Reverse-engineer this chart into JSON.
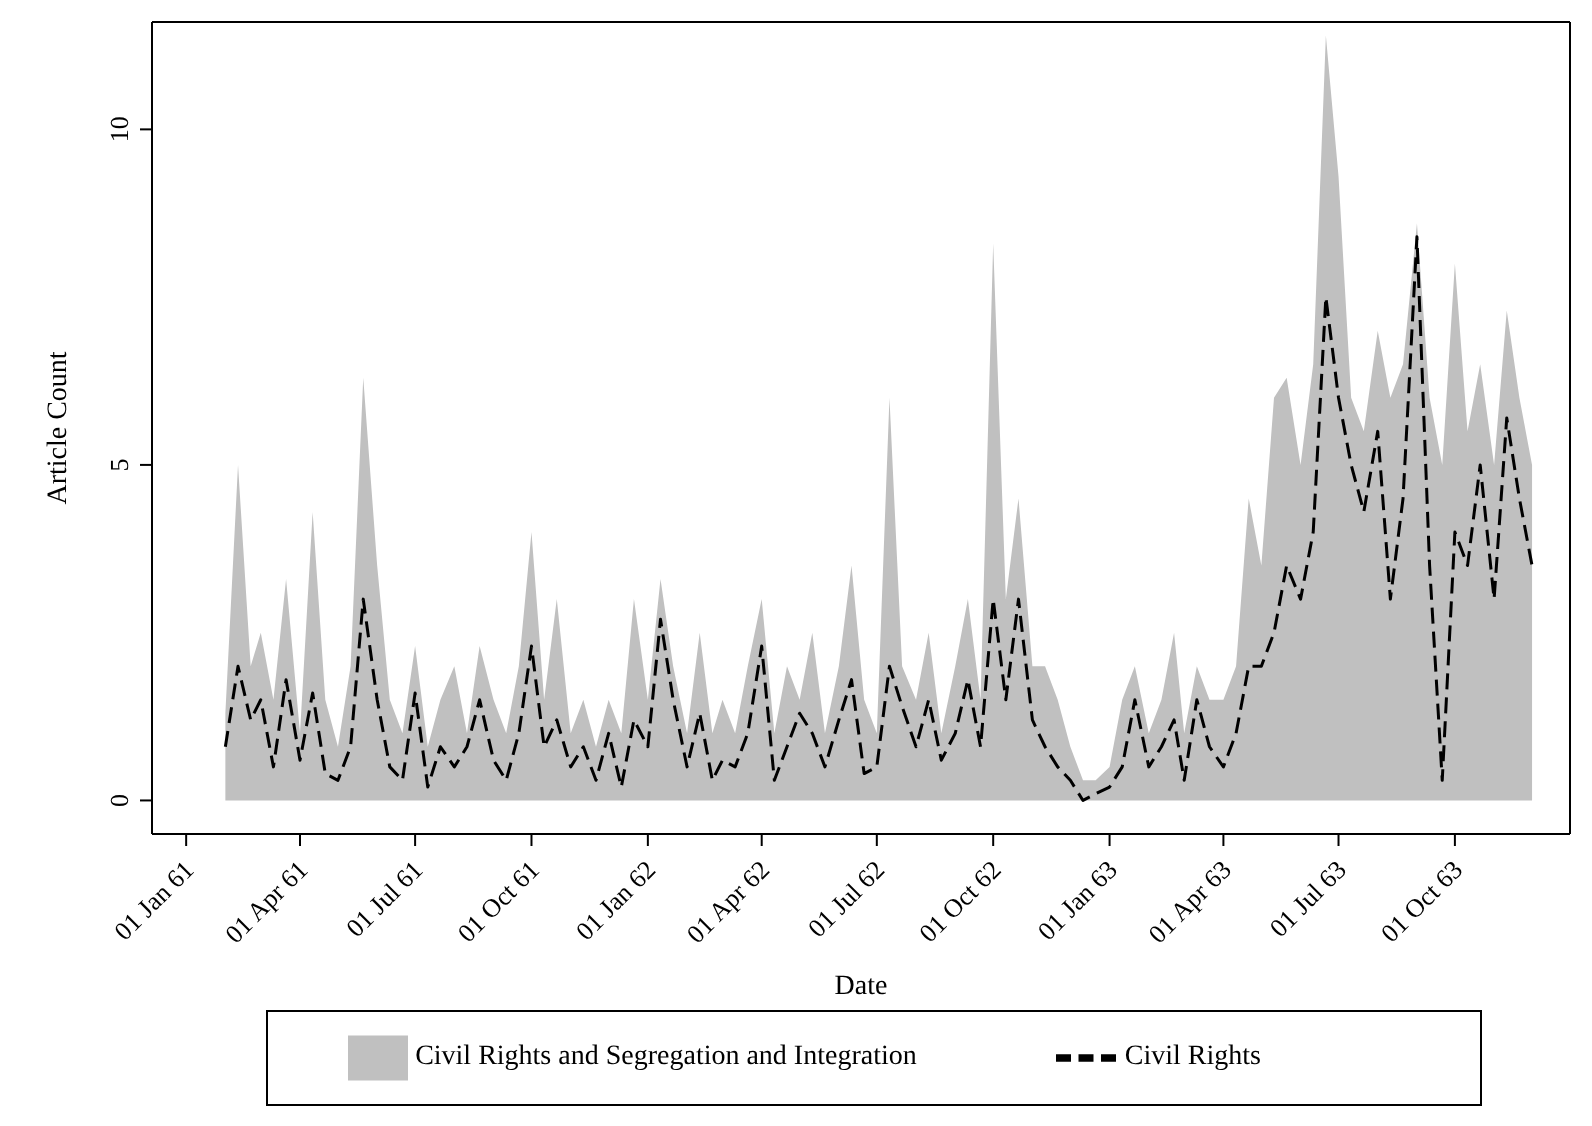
{
  "chart_data": {
    "type": "area",
    "xlabel": "Date",
    "ylabel": "Article Count",
    "x": [
      "1961-02-01",
      "1961-02-11",
      "1961-02-21",
      "1961-03-01",
      "1961-03-11",
      "1961-03-21",
      "1961-04-01",
      "1961-04-11",
      "1961-04-21",
      "1961-05-01",
      "1961-05-11",
      "1961-05-21",
      "1961-06-01",
      "1961-06-11",
      "1961-06-21",
      "1961-07-01",
      "1961-07-11",
      "1961-07-21",
      "1961-08-01",
      "1961-08-11",
      "1961-08-21",
      "1961-09-01",
      "1961-09-11",
      "1961-09-21",
      "1961-10-01",
      "1961-10-11",
      "1961-10-21",
      "1961-11-01",
      "1961-11-11",
      "1961-11-21",
      "1961-12-01",
      "1961-12-11",
      "1961-12-21",
      "1962-01-01",
      "1962-01-11",
      "1962-01-21",
      "1962-02-01",
      "1962-02-11",
      "1962-02-21",
      "1962-03-01",
      "1962-03-11",
      "1962-03-21",
      "1962-04-01",
      "1962-04-11",
      "1962-04-21",
      "1962-05-01",
      "1962-05-11",
      "1962-05-21",
      "1962-06-01",
      "1962-06-11",
      "1962-06-21",
      "1962-07-01",
      "1962-07-11",
      "1962-07-21",
      "1962-08-01",
      "1962-08-11",
      "1962-08-21",
      "1962-09-01",
      "1962-09-11",
      "1962-09-21",
      "1962-10-01",
      "1962-10-11",
      "1962-10-21",
      "1962-11-01",
      "1962-11-11",
      "1962-11-21",
      "1962-12-01",
      "1962-12-11",
      "1962-12-21",
      "1963-01-01",
      "1963-01-11",
      "1963-01-21",
      "1963-02-01",
      "1963-02-11",
      "1963-02-21",
      "1963-03-01",
      "1963-03-11",
      "1963-03-21",
      "1963-04-01",
      "1963-04-11",
      "1963-04-21",
      "1963-05-01",
      "1963-05-11",
      "1963-05-21",
      "1963-06-01",
      "1963-06-11",
      "1963-06-21",
      "1963-07-01",
      "1963-07-11",
      "1963-07-21",
      "1963-08-01",
      "1963-08-11",
      "1963-08-21",
      "1963-09-01",
      "1963-09-11",
      "1963-09-21",
      "1963-10-01",
      "1963-10-11",
      "1963-10-21",
      "1963-11-01",
      "1963-11-11",
      "1963-11-21",
      "1963-12-01"
    ],
    "series": [
      {
        "name": "Civil Rights and Segregation and Integration",
        "color": "#c0c0c0",
        "values": [
          1.3,
          5.0,
          2.0,
          2.5,
          1.5,
          3.3,
          1.0,
          4.3,
          1.5,
          0.8,
          2.0,
          6.3,
          3.5,
          1.5,
          1.0,
          2.3,
          0.8,
          1.5,
          2.0,
          1.0,
          2.3,
          1.5,
          1.0,
          2.0,
          4.0,
          1.5,
          3.0,
          1.0,
          1.5,
          0.8,
          1.5,
          1.0,
          3.0,
          1.5,
          3.3,
          2.0,
          1.0,
          2.5,
          1.0,
          1.5,
          1.0,
          2.0,
          3.0,
          1.0,
          2.0,
          1.5,
          2.5,
          1.0,
          2.0,
          3.5,
          1.5,
          1.0,
          6.0,
          2.0,
          1.5,
          2.5,
          1.0,
          2.0,
          3.0,
          1.5,
          8.3,
          3.0,
          4.5,
          2.0,
          2.0,
          1.5,
          0.8,
          0.3,
          0.3,
          0.5,
          1.5,
          2.0,
          1.0,
          1.5,
          2.5,
          1.0,
          2.0,
          1.5,
          1.5,
          2.0,
          4.5,
          3.5,
          6.0,
          6.3,
          5.0,
          6.5,
          11.4,
          9.3,
          6.0,
          5.5,
          7.0,
          6.0,
          6.5,
          8.6,
          6.0,
          5.0,
          8.0,
          5.5,
          6.5,
          5.0,
          7.3,
          6.0,
          5.0
        ]
      },
      {
        "name": "Civil Rights",
        "type": "line",
        "color": "#000000",
        "line_style": "dashed",
        "values": [
          0.8,
          2.0,
          1.2,
          1.5,
          0.5,
          1.8,
          0.6,
          1.6,
          0.4,
          0.3,
          0.8,
          3.0,
          1.5,
          0.5,
          0.3,
          1.6,
          0.2,
          0.8,
          0.5,
          0.8,
          1.5,
          0.6,
          0.3,
          1.0,
          2.3,
          0.8,
          1.2,
          0.5,
          0.8,
          0.3,
          1.0,
          0.2,
          1.2,
          0.8,
          2.7,
          1.5,
          0.5,
          1.3,
          0.3,
          0.6,
          0.5,
          1.0,
          2.3,
          0.3,
          0.8,
          1.3,
          1.0,
          0.5,
          1.2,
          1.8,
          0.4,
          0.5,
          2.0,
          1.4,
          0.8,
          1.5,
          0.6,
          1.0,
          1.8,
          0.8,
          3.0,
          1.5,
          3.0,
          1.2,
          0.8,
          0.5,
          0.3,
          0.0,
          0.1,
          0.2,
          0.5,
          1.5,
          0.5,
          0.8,
          1.2,
          0.3,
          1.5,
          0.8,
          0.5,
          1.0,
          2.0,
          2.0,
          2.5,
          3.5,
          3.0,
          4.0,
          7.5,
          6.0,
          5.0,
          4.3,
          5.5,
          3.0,
          4.5,
          8.4,
          3.5,
          0.3,
          4.0,
          3.5,
          5.0,
          3.0,
          5.7,
          4.5,
          3.5
        ]
      }
    ],
    "xlim": [
      "1960-12-05",
      "1963-12-31"
    ],
    "xticks": [
      {
        "value": "1961-01-01",
        "label": "01 Jan 61"
      },
      {
        "value": "1961-04-01",
        "label": "01 Apr 61"
      },
      {
        "value": "1961-07-01",
        "label": "01 Jul 61"
      },
      {
        "value": "1961-10-01",
        "label": "01 Oct 61"
      },
      {
        "value": "1962-01-01",
        "label": "01 Jan 62"
      },
      {
        "value": "1962-04-01",
        "label": "01 Apr 62"
      },
      {
        "value": "1962-07-01",
        "label": "01 Jul 62"
      },
      {
        "value": "1962-10-01",
        "label": "01 Oct 62"
      },
      {
        "value": "1963-01-01",
        "label": "01 Jan 63"
      },
      {
        "value": "1963-04-01",
        "label": "01 Apr 63"
      },
      {
        "value": "1963-07-01",
        "label": "01 Jul 63"
      },
      {
        "value": "1963-10-01",
        "label": "01 Oct 63"
      }
    ],
    "ylim": [
      -0.5,
      11.6
    ],
    "yticks": [
      0,
      5,
      10
    ],
    "legend": "bottom"
  }
}
